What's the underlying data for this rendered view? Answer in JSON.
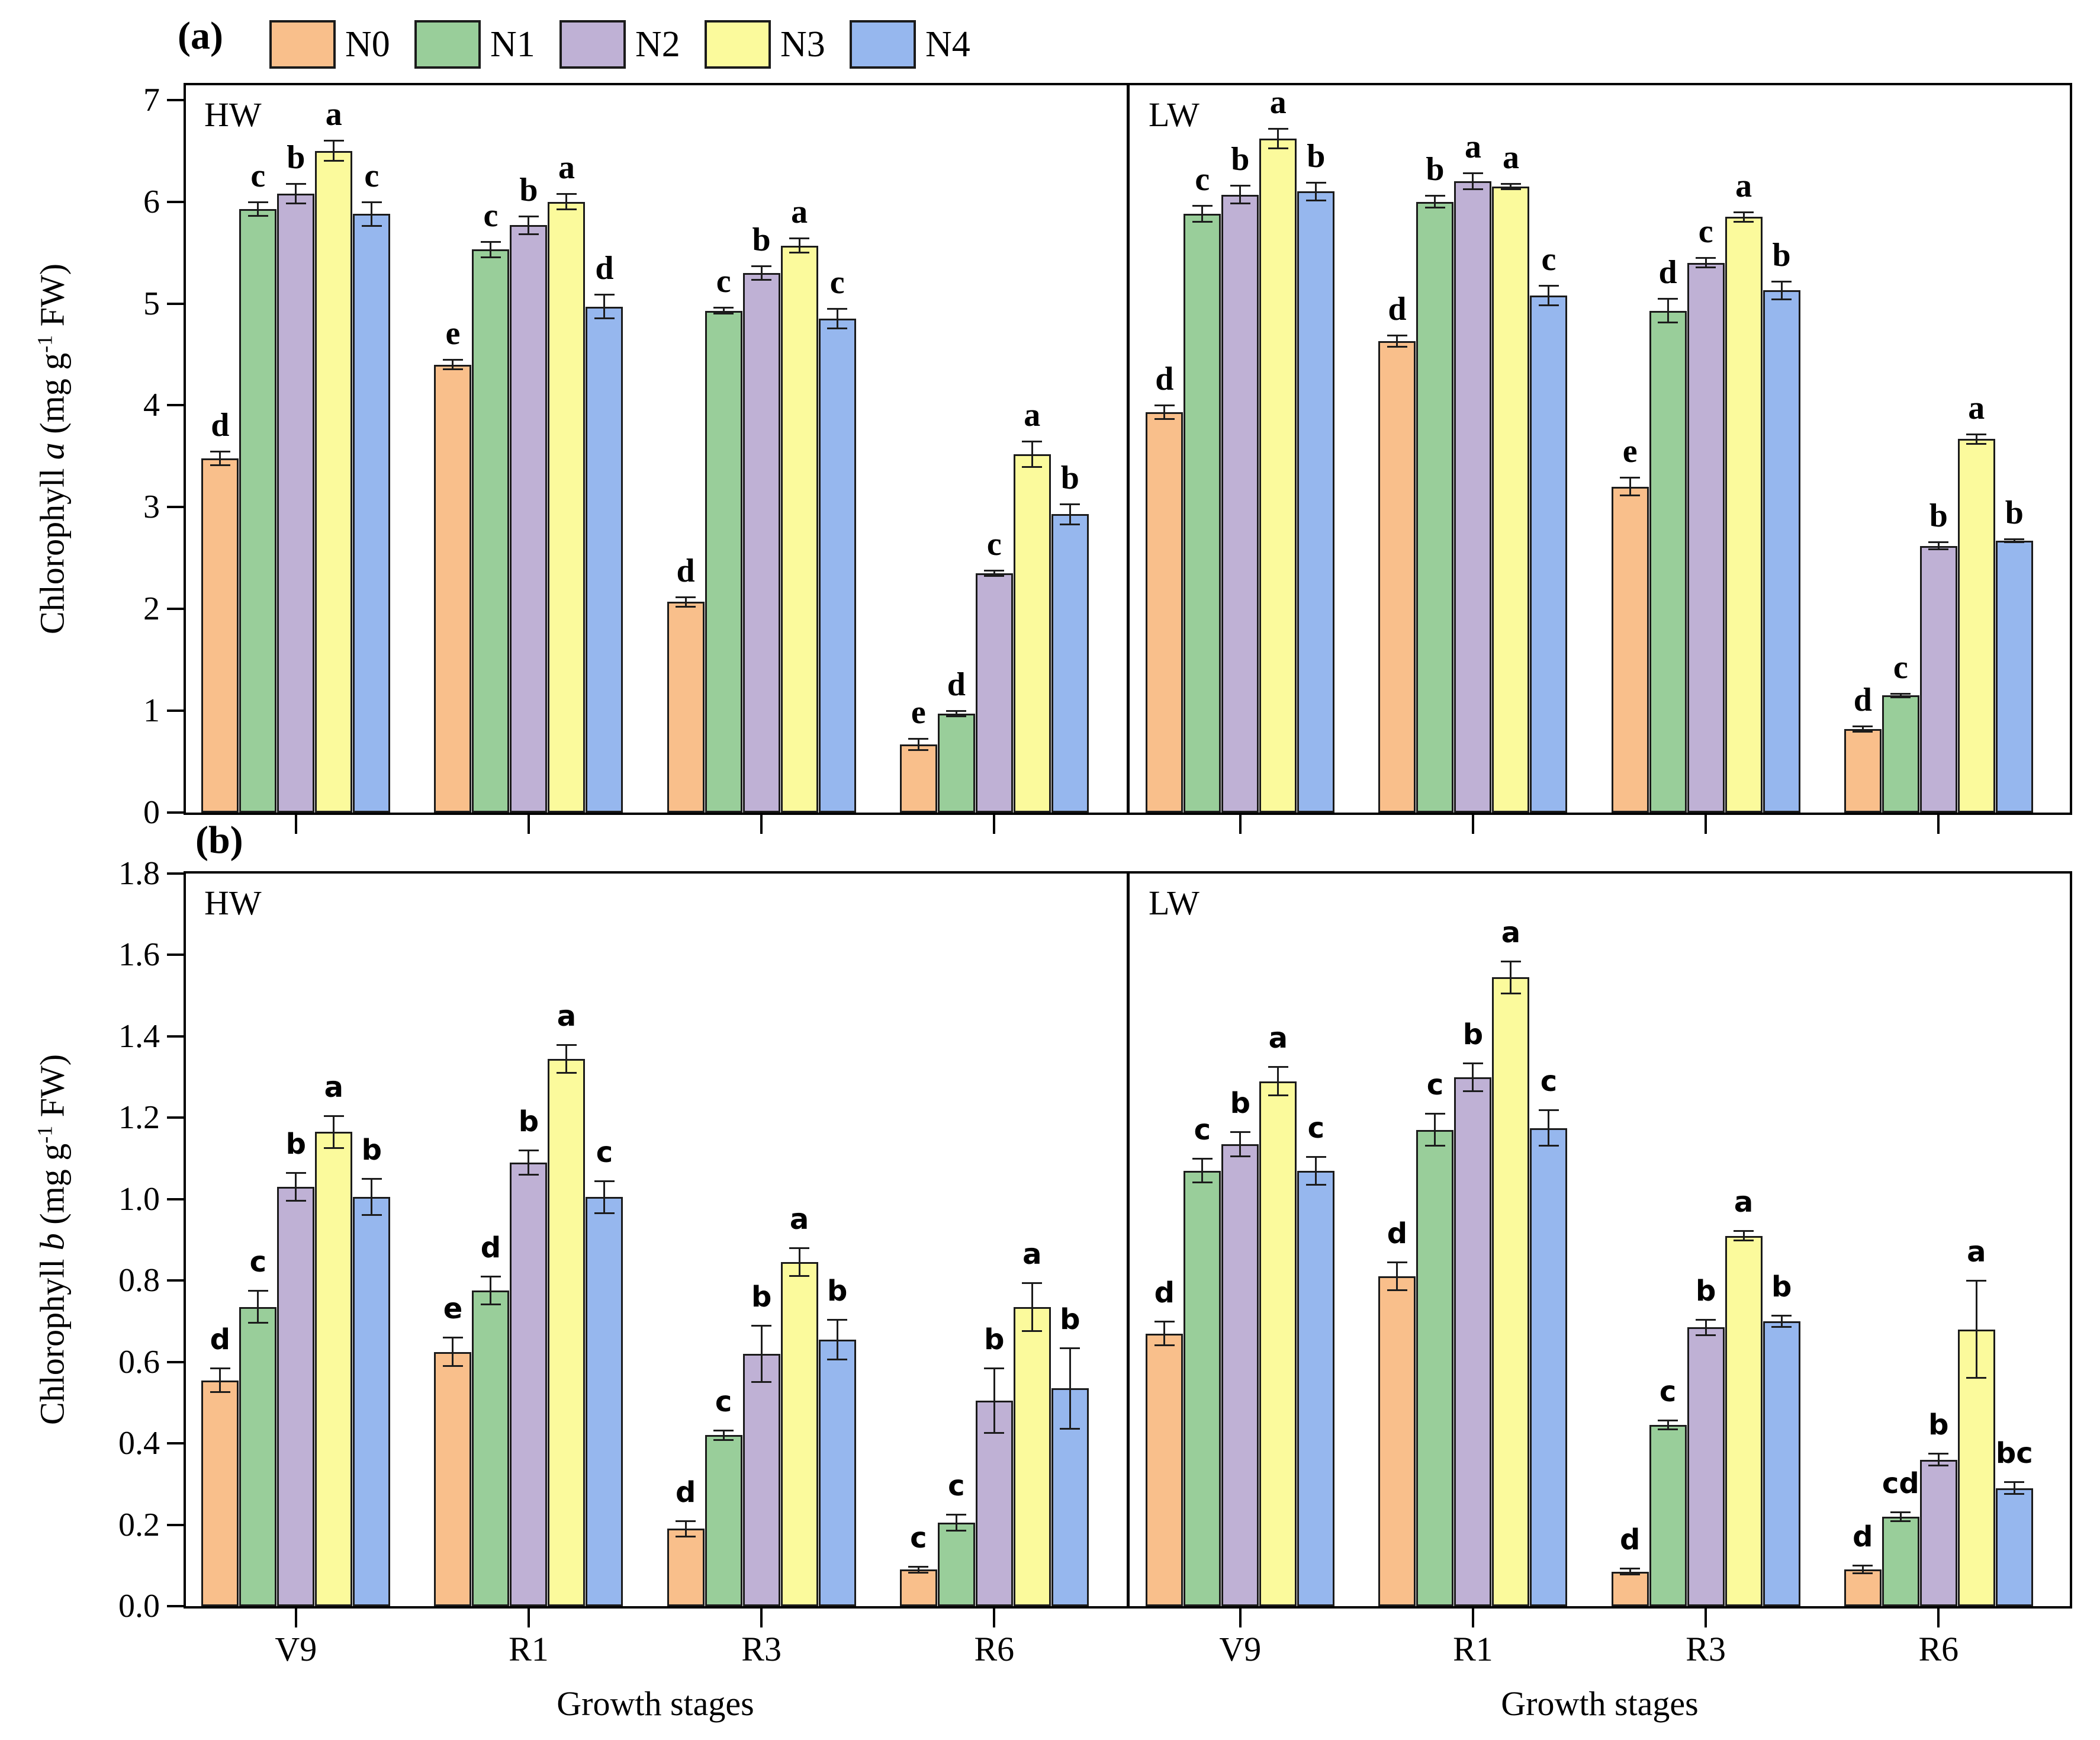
{
  "figure": {
    "panel_a_label": "(a)",
    "panel_b_label": "(b)",
    "xlabel": "Growth stages",
    "subpanel_left": "HW",
    "subpanel_right": "LW",
    "ylabel_a": {
      "prefix": "Chlorophyll ",
      "italic": "a",
      "unit_prefix": " (mg g",
      "unit_sup": "-1",
      "unit_suffix": " FW)"
    },
    "ylabel_b": {
      "prefix": "Chlorophyll ",
      "italic": "b",
      "unit_prefix": " (mg g",
      "unit_sup": "-1",
      "unit_suffix": " FW)"
    },
    "legend": {
      "items": [
        {
          "label": "N0",
          "color": "#F9BF8B"
        },
        {
          "label": "N1",
          "color": "#99CE9A"
        },
        {
          "label": "N2",
          "color": "#BFB1D5"
        },
        {
          "label": "N3",
          "color": "#FBFA9C"
        },
        {
          "label": "N4",
          "color": "#96B7EE"
        }
      ]
    }
  },
  "chart_data": [
    {
      "id": "chlorophyll_a",
      "type": "bar",
      "title": "(a) Chlorophyll a by growth stage",
      "ylabel": "Chlorophyll a (mg g-1 FW)",
      "xlabel": "Growth stages",
      "ylim": [
        0,
        7
      ],
      "yticks": [
        0,
        1,
        2,
        3,
        4,
        5,
        6,
        7
      ],
      "ytick_decimals": 0,
      "categories": [
        "V9",
        "R1",
        "R3",
        "R6"
      ],
      "legend_position": "top",
      "grid": false,
      "error_bars": true,
      "panels": [
        {
          "name": "HW",
          "series": [
            {
              "name": "N0",
              "values": [
                3.48,
                4.4,
                2.07,
                0.67
              ],
              "errors": [
                0.07,
                0.05,
                0.05,
                0.06
              ],
              "letters": [
                "d",
                "e",
                "d",
                "e"
              ]
            },
            {
              "name": "N1",
              "values": [
                5.93,
                5.53,
                4.93,
                0.97
              ],
              "errors": [
                0.07,
                0.08,
                0.03,
                0.03
              ],
              "letters": [
                "c",
                "c",
                "c",
                "d"
              ]
            },
            {
              "name": "N2",
              "values": [
                6.08,
                5.77,
                5.3,
                2.35
              ],
              "errors": [
                0.1,
                0.09,
                0.07,
                0.03
              ],
              "letters": [
                "b",
                "b",
                "b",
                "c"
              ]
            },
            {
              "name": "N3",
              "values": [
                6.5,
                6.0,
                5.57,
                3.52
              ],
              "errors": [
                0.1,
                0.08,
                0.07,
                0.13
              ],
              "letters": [
                "a",
                "a",
                "a",
                "a"
              ]
            },
            {
              "name": "N4",
              "values": [
                5.88,
                4.97,
                4.85,
                2.93
              ],
              "errors": [
                0.12,
                0.12,
                0.1,
                0.1
              ],
              "letters": [
                "c",
                "d",
                "c",
                "b"
              ]
            }
          ]
        },
        {
          "name": "LW",
          "series": [
            {
              "name": "N0",
              "values": [
                3.93,
                4.63,
                3.2,
                0.82
              ],
              "errors": [
                0.07,
                0.06,
                0.09,
                0.03
              ],
              "letters": [
                "d",
                "d",
                "e",
                "d"
              ]
            },
            {
              "name": "N1",
              "values": [
                5.88,
                6.0,
                4.93,
                1.15
              ],
              "errors": [
                0.08,
                0.06,
                0.12,
                0.02
              ],
              "letters": [
                "c",
                "b",
                "d",
                "c"
              ]
            },
            {
              "name": "N2",
              "values": [
                6.07,
                6.2,
                5.4,
                2.62
              ],
              "errors": [
                0.09,
                0.08,
                0.05,
                0.04
              ],
              "letters": [
                "b",
                "a",
                "c",
                "b"
              ]
            },
            {
              "name": "N3",
              "values": [
                6.62,
                6.15,
                5.85,
                3.67
              ],
              "errors": [
                0.1,
                0.03,
                0.05,
                0.05
              ],
              "letters": [
                "a",
                "a",
                "a",
                "a"
              ]
            },
            {
              "name": "N4",
              "values": [
                6.1,
                5.08,
                5.13,
                2.67
              ],
              "errors": [
                0.09,
                0.1,
                0.09,
                0.02
              ],
              "letters": [
                "b",
                "c",
                "b",
                "b"
              ]
            }
          ]
        }
      ]
    },
    {
      "id": "chlorophyll_b",
      "type": "bar",
      "title": "(b) Chlorophyll b by growth stage",
      "ylabel": "Chlorophyll b (mg g-1 FW)",
      "xlabel": "Growth stages",
      "ylim": [
        0,
        1.8
      ],
      "yticks": [
        0.0,
        0.2,
        0.4,
        0.6,
        0.8,
        1.0,
        1.2,
        1.4,
        1.6,
        1.8
      ],
      "ytick_decimals": 1,
      "categories": [
        "V9",
        "R1",
        "R3",
        "R6"
      ],
      "legend_position": "top",
      "grid": false,
      "error_bars": true,
      "panels": [
        {
          "name": "HW",
          "series": [
            {
              "name": "N0",
              "values": [
                0.555,
                0.625,
                0.19,
                0.09
              ],
              "errors": [
                0.03,
                0.035,
                0.02,
                0.008
              ],
              "letters": [
                "d",
                "e",
                "d",
                "c"
              ]
            },
            {
              "name": "N1",
              "values": [
                0.735,
                0.775,
                0.42,
                0.205
              ],
              "errors": [
                0.04,
                0.035,
                0.012,
                0.02
              ],
              "letters": [
                "c",
                "d",
                "c",
                "c"
              ]
            },
            {
              "name": "N2",
              "values": [
                1.03,
                1.09,
                0.62,
                0.505
              ],
              "errors": [
                0.035,
                0.03,
                0.07,
                0.08
              ],
              "letters": [
                "b",
                "b",
                "b",
                "b"
              ]
            },
            {
              "name": "N3",
              "values": [
                1.165,
                1.345,
                0.845,
                0.735
              ],
              "errors": [
                0.04,
                0.035,
                0.035,
                0.06
              ],
              "letters": [
                "a",
                "a",
                "a",
                "a"
              ]
            },
            {
              "name": "N4",
              "values": [
                1.005,
                1.005,
                0.655,
                0.535
              ],
              "errors": [
                0.045,
                0.04,
                0.05,
                0.1
              ],
              "letters": [
                "b",
                "c",
                "b",
                "b"
              ]
            }
          ]
        },
        {
          "name": "LW",
          "series": [
            {
              "name": "N0",
              "values": [
                0.67,
                0.81,
                0.085,
                0.09
              ],
              "errors": [
                0.03,
                0.035,
                0.008,
                0.01
              ],
              "letters": [
                "d",
                "d",
                "d",
                "d"
              ]
            },
            {
              "name": "N1",
              "values": [
                1.07,
                1.17,
                0.445,
                0.22
              ],
              "errors": [
                0.03,
                0.04,
                0.012,
                0.012
              ],
              "letters": [
                "c",
                "c",
                "c",
                "cd"
              ]
            },
            {
              "name": "N2",
              "values": [
                1.135,
                1.3,
                0.685,
                0.36
              ],
              "errors": [
                0.03,
                0.035,
                0.02,
                0.015
              ],
              "letters": [
                "b",
                "b",
                "b",
                "b"
              ]
            },
            {
              "name": "N3",
              "values": [
                1.29,
                1.545,
                0.91,
                0.68
              ],
              "errors": [
                0.035,
                0.04,
                0.012,
                0.12
              ],
              "letters": [
                "a",
                "a",
                "a",
                "a"
              ]
            },
            {
              "name": "N4",
              "values": [
                1.07,
                1.175,
                0.7,
                0.29
              ],
              "errors": [
                0.035,
                0.045,
                0.015,
                0.015
              ],
              "letters": [
                "c",
                "c",
                "b",
                "bc"
              ]
            }
          ]
        }
      ]
    }
  ]
}
